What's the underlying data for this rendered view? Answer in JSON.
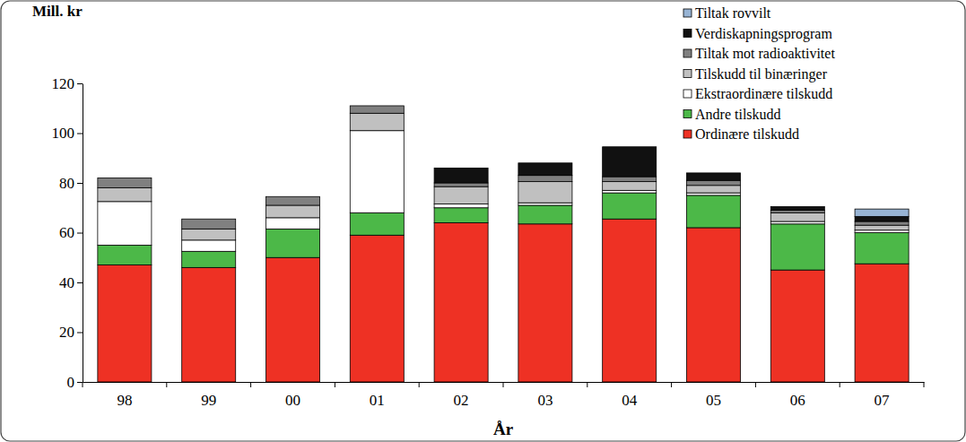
{
  "chart_data": {
    "type": "bar",
    "stacked": true,
    "legend": "top-right",
    "grid": false,
    "y_label": "Mill. kr",
    "x_label": "År",
    "categories": [
      "98",
      "99",
      "00",
      "01",
      "02",
      "03",
      "04",
      "05",
      "06",
      "07"
    ],
    "ylim": [
      0,
      120
    ],
    "yticks": [
      0,
      20,
      40,
      60,
      80,
      100,
      120
    ],
    "series": [
      {
        "name": "Ordinære tilskudd",
        "color": "#ee3124",
        "values": [
          47,
          46,
          50,
          59,
          64,
          63.5,
          65.5,
          62,
          45,
          47.5
        ]
      },
      {
        "name": "Andre tilskudd",
        "color": "#4cb848",
        "values": [
          8,
          6.5,
          11.5,
          9,
          6,
          7.5,
          10.5,
          13,
          18.5,
          12.5
        ]
      },
      {
        "name": "Ekstraordinære tilskudd",
        "color": "#ffffff",
        "values": [
          17.5,
          4.5,
          4.5,
          33,
          1.5,
          1,
          1,
          1,
          1,
          1
        ]
      },
      {
        "name": "Tilskudd til binæringer",
        "color": "#c0c0c0",
        "values": [
          5.5,
          4.5,
          5,
          7,
          7,
          8.5,
          3.5,
          3,
          3.5,
          2
        ]
      },
      {
        "name": "Tiltak mot radioaktivitet",
        "color": "#808080",
        "values": [
          4,
          4,
          3.5,
          3,
          1.5,
          2.5,
          2,
          2,
          1,
          1.5
        ]
      },
      {
        "name": "Verdiskapningsprogram",
        "color": "#111111",
        "values": [
          0,
          0,
          0,
          0,
          6,
          5,
          12,
          3,
          1.5,
          2
        ]
      },
      {
        "name": "Tiltak rovvilt",
        "color": "#98b4d4",
        "values": [
          0,
          0,
          0,
          0,
          0,
          0,
          0,
          0,
          0,
          3
        ]
      }
    ]
  }
}
